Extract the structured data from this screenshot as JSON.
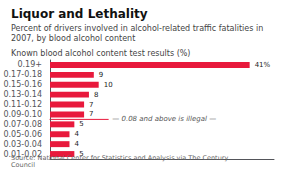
{
  "chart_data": {
    "type": "bar",
    "orientation": "horizontal",
    "title": "Liquor and Lethality",
    "subtitle": "Percent of drivers involved in alcohol-related traffic fatalities in 2007, by blood alcohol content",
    "axis_label": "Known blood alcohol content test results (%)",
    "source": "Source: National Center for Statistics and Analysis via The Century Council",
    "categories": [
      "0.19+",
      "0.17-0.18",
      "0.15-0.16",
      "0.13-0.14",
      "0.11-0.12",
      "0.09-0.10",
      "0.07-0.08",
      "0.05-0.06",
      "0.03-0.04",
      "0.01-0.02"
    ],
    "values": [
      41,
      9,
      10,
      8,
      7,
      7,
      5,
      4,
      4,
      5
    ],
    "value_labels": [
      "41%",
      "9",
      "10",
      "8",
      "7",
      "7",
      "5",
      "4",
      "4",
      "5"
    ],
    "color": "#e8193c",
    "xlim": [
      0,
      46
    ],
    "data_labels": true,
    "tick_labels": "y",
    "grid": false,
    "annotations": [
      {
        "text": "— 0.08 and above is illegal —",
        "between": [
          "0.09-0.10",
          "0.07-0.08"
        ]
      }
    ]
  }
}
